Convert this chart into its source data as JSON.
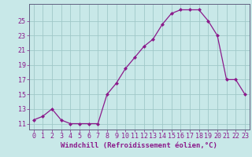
{
  "x": [
    0,
    1,
    2,
    3,
    4,
    5,
    6,
    7,
    8,
    9,
    10,
    11,
    12,
    13,
    14,
    15,
    16,
    17,
    18,
    19,
    20,
    21,
    22,
    23
  ],
  "y": [
    11.5,
    12.0,
    13.0,
    11.5,
    11.0,
    11.0,
    11.0,
    11.0,
    15.0,
    16.5,
    18.5,
    20.0,
    21.5,
    22.5,
    24.5,
    26.0,
    26.5,
    26.5,
    26.5,
    25.0,
    23.0,
    17.0,
    17.0,
    15.0
  ],
  "line_color": "#8b1a8b",
  "marker": "D",
  "marker_size": 2.0,
  "bg_color": "#c8e8e8",
  "grid_color": "#a0c8c8",
  "axis_color": "#606080",
  "yticks": [
    11,
    13,
    15,
    17,
    19,
    21,
    23,
    25
  ],
  "xlabel": "Windchill (Refroidissement éolien,°C)",
  "xlabel_fontsize": 6.5,
  "tick_fontsize": 6,
  "ylim": [
    10.2,
    27.3
  ],
  "xlim": [
    -0.5,
    23.5
  ]
}
